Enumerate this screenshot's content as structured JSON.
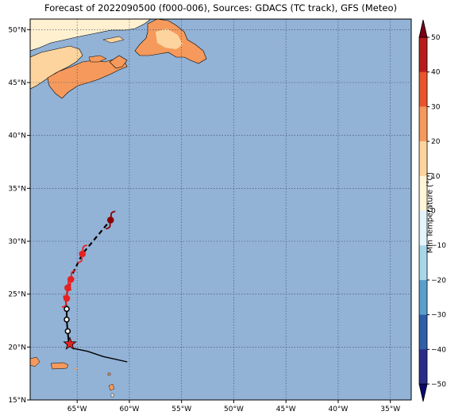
{
  "title": "Forecast of 2022090500 (f000-006), Sources: GDACS (TC track), GFS (Meteo)",
  "colorbar": {
    "label": "Min Temperature (°C)",
    "ticks": [
      "50",
      "40",
      "30",
      "20",
      "10",
      "0",
      "−10",
      "−20",
      "−30",
      "−40",
      "−50"
    ],
    "colors": [
      "#7a0016",
      "#b71c1c",
      "#e8552c",
      "#f59a5c",
      "#fdd49e",
      "#fff5d8",
      "#e3f4fb",
      "#a9d6ea",
      "#5aa0cb",
      "#2f5ea8",
      "#2a2c8a",
      "#0a0a6b"
    ]
  },
  "colors": {
    "ocean": "#92b2d6",
    "land_warm": "#fdd49e",
    "land_hot": "#f59a5c",
    "land_cool": "#fff0d0",
    "track": "#000000",
    "storm_red": "#e52222",
    "storm_dark": "#8b0000"
  },
  "map": {
    "lon_range": [
      -69.5,
      -33
    ],
    "lat_range": [
      15,
      51
    ],
    "lon_ticks": [
      "65°W",
      "60°W",
      "55°W",
      "50°W",
      "45°W",
      "40°W",
      "35°W"
    ],
    "lat_ticks": [
      "50°N",
      "45°N",
      "40°N",
      "35°N",
      "30°N",
      "25°N",
      "20°N",
      "15°N"
    ]
  },
  "chart_data": {
    "type": "map",
    "past_track": [
      {
        "lon": -65.8,
        "lat": 20.4
      },
      {
        "lon": -65.9,
        "lat": 21.4
      },
      {
        "lon": -66.0,
        "lat": 22.5
      },
      {
        "lon": -66.0,
        "lat": 23.6
      },
      {
        "lon": -66.1,
        "lat": 24.5
      }
    ],
    "forecast_track": [
      {
        "lon": -66.0,
        "lat": 24.8
      },
      {
        "lon": -65.9,
        "lat": 25.6
      },
      {
        "lon": -65.7,
        "lat": 26.3
      },
      {
        "lon": -65.5,
        "lat": 26.8
      },
      {
        "lon": -64.5,
        "lat": 28.8
      },
      {
        "lon": -61.8,
        "lat": 32.0
      }
    ],
    "past_positions": [
      {
        "lon": -66.0,
        "lat": 23.6
      },
      {
        "lon": -66.0,
        "lat": 22.6
      },
      {
        "lon": -65.9,
        "lat": 21.5
      }
    ],
    "forecast_symbols": [
      {
        "lon": -66.0,
        "lat": 24.6,
        "color": "#e52222"
      },
      {
        "lon": -65.9,
        "lat": 25.6,
        "color": "#e52222"
      },
      {
        "lon": -65.6,
        "lat": 26.4,
        "color": "#e52222"
      },
      {
        "lon": -64.5,
        "lat": 28.8,
        "color": "#e52222"
      },
      {
        "lon": -61.8,
        "lat": 32.0,
        "color": "#8b0000"
      }
    ],
    "current_position": {
      "lon": -65.7,
      "lat": 20.3
    },
    "prior_path": [
      {
        "lon": -65.5,
        "lat": 19.9
      },
      {
        "lon": -64.0,
        "lat": 19.6
      },
      {
        "lon": -62.5,
        "lat": 19.1
      },
      {
        "lon": -60.2,
        "lat": 18.6
      }
    ]
  }
}
